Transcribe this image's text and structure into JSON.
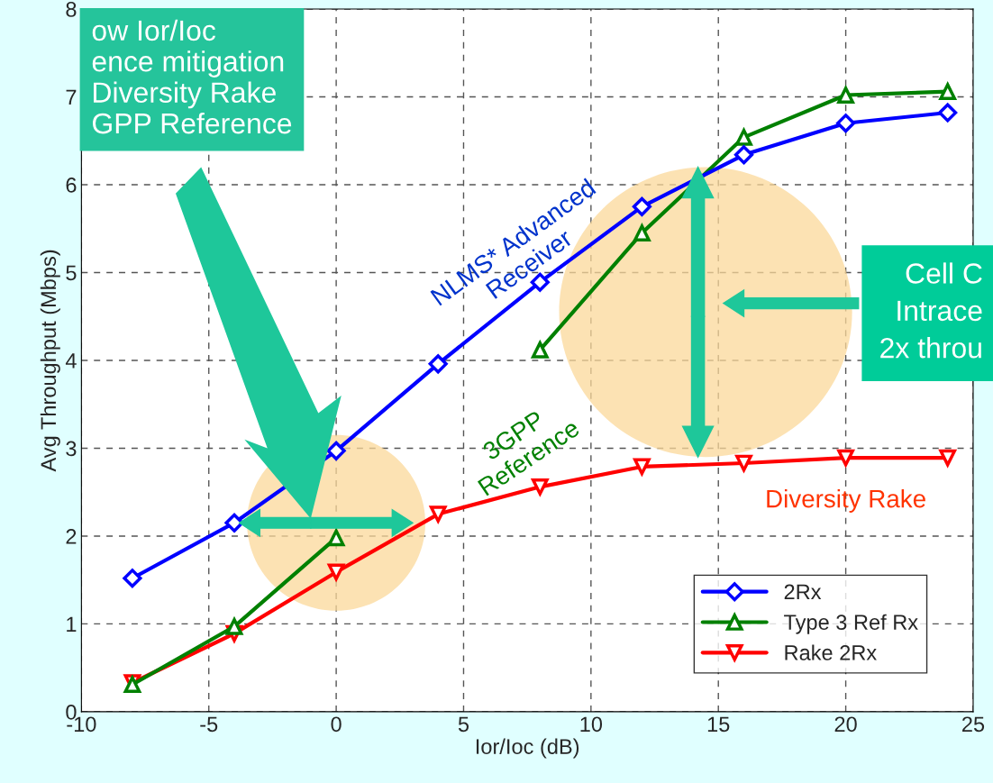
{
  "chart_data": {
    "type": "line",
    "xlabel": "Ior/Ioc (dB)",
    "ylabel": "Avg Throughput (Mbps)",
    "x": [
      -8,
      -4,
      0,
      4,
      8,
      12,
      16,
      20,
      24
    ],
    "series": [
      {
        "name": "2Rx",
        "color": "#0000ff",
        "marker": "diamond",
        "values": [
          1.52,
          2.15,
          2.97,
          3.96,
          4.89,
          5.75,
          6.34,
          6.7,
          6.82
        ]
      },
      {
        "name": "Type 3 Ref Rx",
        "color": "#008000",
        "marker": "triangle",
        "values": [
          0.31,
          0.97,
          1.98,
          null,
          4.12,
          5.45,
          6.54,
          7.02,
          7.06
        ]
      },
      {
        "name": "Rake 2Rx",
        "color": "#ff0000",
        "marker": "triangle-down",
        "values": [
          0.33,
          0.89,
          1.59,
          2.25,
          2.56,
          2.79,
          2.83,
          2.89,
          2.89
        ]
      }
    ],
    "xlim": [
      -10,
      25
    ],
    "ylim": [
      0,
      8
    ],
    "xticks": [
      -10,
      -5,
      0,
      5,
      10,
      15,
      20,
      25
    ],
    "yticks": [
      0,
      1,
      2,
      3,
      4,
      5,
      6,
      7,
      8
    ],
    "grid": true,
    "legend": "bottom right",
    "line_style": "solid",
    "annotations": [
      "NLMS* Advanced\nReceiver",
      "3GPP\nReference",
      "Diversity Rake",
      "ow Ior/Ioc\nence mitigation\nDiversity Rake\nGPP Reference",
      "Cell C\nIntrace\n2x throu"
    ]
  }
}
